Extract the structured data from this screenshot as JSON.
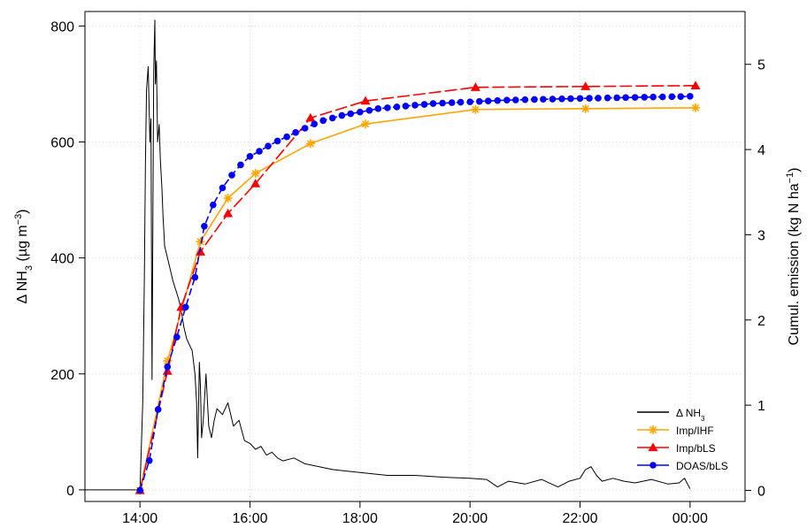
{
  "chart_data": {
    "type": "line",
    "x_ticks": [
      "14:00",
      "16:00",
      "18:00",
      "20:00",
      "22:00",
      "00:00"
    ],
    "x_tick_hours": [
      14,
      16,
      18,
      20,
      22,
      24
    ],
    "xlim": [
      13,
      25
    ],
    "left_axis": {
      "label_prefix": "Δ NH",
      "label_sub": "3",
      "label_mid": " (µg m",
      "label_sup": "−3",
      "label_suffix": ")",
      "ticks": [
        0,
        200,
        400,
        600,
        800
      ],
      "ylim": [
        -20,
        825
      ]
    },
    "right_axis": {
      "label_main": "Cumul. emission (kg N ha",
      "label_sup": "−1",
      "label_suffix": ")",
      "ticks": [
        0,
        1,
        2,
        3,
        4,
        5
      ],
      "ylim": [
        -0.13,
        5.62
      ]
    },
    "legend": {
      "position": "bottom-right",
      "entries": [
        {
          "label_prefix": "Δ NH",
          "label_sub": "3",
          "color": "#000000",
          "marker": "none"
        },
        {
          "label_prefix": "Imp/IHF",
          "label_sub": "",
          "color": "#FFA500",
          "marker": "asterisk"
        },
        {
          "label_prefix": "Imp/bLS",
          "label_sub": "",
          "color": "#FF0000",
          "marker": "triangle"
        },
        {
          "label_prefix": "DOAS/bLS",
          "label_sub": "",
          "color": "#0000FF",
          "marker": "circle"
        }
      ]
    },
    "grid": true,
    "series": [
      {
        "name": "Δ NH3",
        "axis": "left",
        "color": "#000000",
        "x": [
          13.0,
          14.0,
          14.05,
          14.08,
          14.1,
          14.12,
          14.15,
          14.18,
          14.2,
          14.22,
          14.25,
          14.27,
          14.28,
          14.3,
          14.32,
          14.35,
          14.37,
          14.4,
          14.42,
          14.45,
          14.5,
          14.55,
          14.6,
          14.65,
          14.7,
          14.75,
          14.8,
          14.85,
          14.9,
          14.95,
          15.0,
          15.03,
          15.05,
          15.08,
          15.1,
          15.12,
          15.15,
          15.2,
          15.25,
          15.3,
          15.35,
          15.4,
          15.5,
          15.6,
          15.7,
          15.8,
          15.9,
          16.0,
          16.1,
          16.2,
          16.3,
          16.4,
          16.5,
          16.6,
          16.8,
          17.0,
          17.5,
          18.0,
          18.5,
          19.0,
          19.5,
          20.0,
          20.3,
          20.5,
          20.7,
          21.0,
          21.3,
          21.6,
          21.8,
          22.0,
          22.1,
          22.2,
          22.3,
          22.4,
          22.6,
          22.8,
          23.0,
          23.3,
          23.6,
          23.8,
          23.9,
          24.0
        ],
        "y": [
          0,
          0,
          150,
          360,
          570,
          690,
          730,
          600,
          640,
          190,
          720,
          810,
          700,
          740,
          600,
          630,
          570,
          520,
          470,
          420,
          400,
          380,
          360,
          345,
          330,
          310,
          280,
          260,
          250,
          240,
          200,
          150,
          55,
          220,
          180,
          90,
          120,
          200,
          110,
          90,
          120,
          140,
          130,
          150,
          110,
          120,
          85,
          80,
          70,
          75,
          60,
          65,
          55,
          50,
          55,
          45,
          35,
          30,
          25,
          25,
          22,
          20,
          18,
          5,
          15,
          10,
          18,
          5,
          15,
          20,
          35,
          40,
          25,
          15,
          20,
          15,
          12,
          18,
          10,
          12,
          20,
          2
        ]
      },
      {
        "name": "Imp/IHF",
        "axis": "right",
        "color": "#FFA500",
        "x": [
          14.0,
          14.5,
          15.1,
          15.6,
          16.1,
          17.1,
          18.1,
          20.1,
          22.1,
          24.1
        ],
        "y": [
          0,
          1.52,
          2.92,
          3.43,
          3.72,
          4.07,
          4.3,
          4.47,
          4.48,
          4.49
        ]
      },
      {
        "name": "Imp/bLS",
        "axis": "right",
        "color": "#FF0000",
        "x": [
          14.0,
          14.5,
          14.75,
          15.1,
          15.6,
          16.1,
          17.1,
          18.1,
          20.1,
          22.1,
          24.1
        ],
        "y": [
          0,
          1.4,
          2.15,
          2.8,
          3.25,
          3.6,
          4.37,
          4.57,
          4.73,
          4.74,
          4.75
        ]
      },
      {
        "name": "DOAS/bLS",
        "axis": "right",
        "color": "#0000FF",
        "x": [
          14.0,
          14.17,
          14.33,
          14.5,
          14.67,
          14.83,
          15.0,
          15.17,
          15.33,
          15.5,
          15.67,
          15.83,
          16.0,
          16.17,
          16.33,
          16.5,
          16.67,
          16.83,
          17.0,
          17.17,
          17.33,
          17.5,
          17.67,
          17.83,
          18.0,
          18.17,
          18.33,
          18.5,
          18.67,
          18.83,
          19.0,
          19.17,
          19.33,
          19.5,
          19.67,
          19.83,
          20.0,
          20.17,
          20.33,
          20.5,
          20.67,
          20.83,
          21.0,
          21.17,
          21.33,
          21.5,
          21.67,
          21.83,
          22.0,
          22.17,
          22.33,
          22.5,
          22.67,
          22.83,
          23.0,
          23.17,
          23.33,
          23.5,
          23.67,
          23.83,
          24.0
        ],
        "y": [
          0,
          0.35,
          0.95,
          1.45,
          1.8,
          2.15,
          2.5,
          3.1,
          3.35,
          3.55,
          3.7,
          3.82,
          3.92,
          3.98,
          4.04,
          4.1,
          4.15,
          4.2,
          4.25,
          4.3,
          4.34,
          4.37,
          4.4,
          4.42,
          4.44,
          4.46,
          4.48,
          4.49,
          4.5,
          4.51,
          4.52,
          4.53,
          4.54,
          4.545,
          4.55,
          4.555,
          4.56,
          4.565,
          4.57,
          4.575,
          4.58,
          4.582,
          4.585,
          4.588,
          4.59,
          4.592,
          4.595,
          4.597,
          4.6,
          4.602,
          4.604,
          4.606,
          4.608,
          4.61,
          4.612,
          4.614,
          4.616,
          4.618,
          4.62,
          4.622,
          4.625
        ]
      }
    ]
  }
}
